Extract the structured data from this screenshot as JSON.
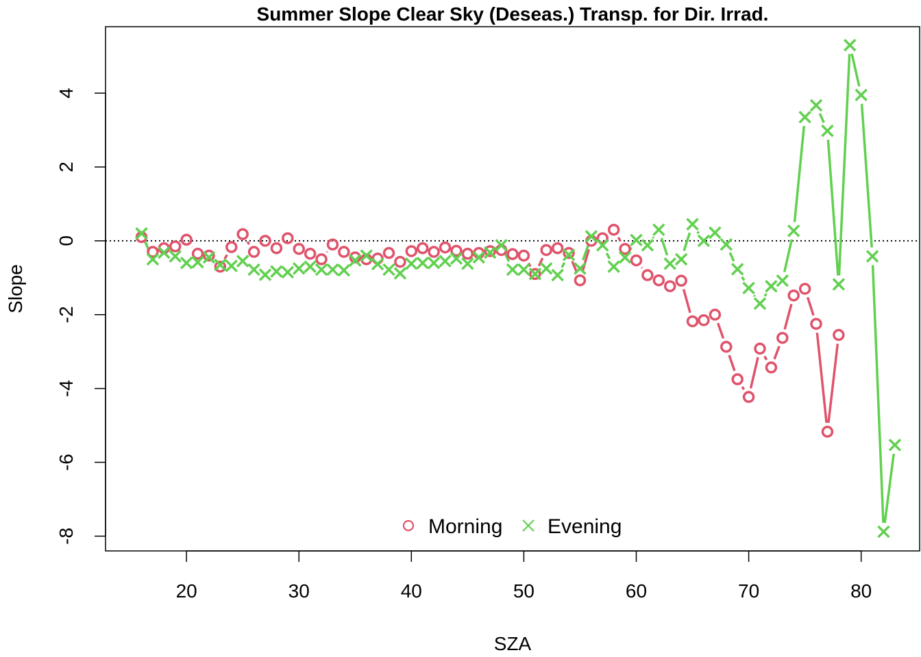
{
  "chart_data": {
    "type": "line",
    "title": "Summer Slope Clear Sky (Deseas.) Transp. for Dir. Irrad.",
    "xlabel": "SZA",
    "ylabel": "Slope",
    "xlim": [
      12.8,
      85.2
    ],
    "ylim": [
      -8.4,
      5.8
    ],
    "xticks": [
      20,
      30,
      40,
      50,
      60,
      70,
      80
    ],
    "yticks": [
      -8,
      -6,
      -4,
      -2,
      0,
      2,
      4
    ],
    "reference_line": {
      "y": 0,
      "style": "dotted"
    },
    "grid": false,
    "legend": {
      "position": "bottom-center",
      "entries": [
        "Morning",
        "Evening"
      ]
    },
    "series": [
      {
        "name": "Morning",
        "marker": "circle",
        "color": "#DF536B",
        "points": [
          [
            16,
            0.1
          ],
          [
            17,
            -0.3
          ],
          [
            18,
            -0.2
          ],
          [
            19,
            -0.15
          ],
          [
            20,
            0.03
          ],
          [
            21,
            -0.35
          ],
          [
            22,
            -0.4
          ],
          [
            23,
            -0.7
          ],
          [
            24,
            -0.17
          ],
          [
            25,
            0.18
          ],
          [
            26,
            -0.3
          ],
          [
            27,
            0.0
          ],
          [
            28,
            -0.2
          ],
          [
            29,
            0.07
          ],
          [
            30,
            -0.22
          ],
          [
            31,
            -0.35
          ],
          [
            32,
            -0.5
          ],
          [
            33,
            -0.1
          ],
          [
            34,
            -0.3
          ],
          [
            35,
            -0.45
          ],
          [
            36,
            -0.5
          ],
          [
            37,
            -0.48
          ],
          [
            38,
            -0.33
          ],
          [
            39,
            -0.57
          ],
          [
            40,
            -0.28
          ],
          [
            41,
            -0.2
          ],
          [
            42,
            -0.3
          ],
          [
            43,
            -0.18
          ],
          [
            44,
            -0.27
          ],
          [
            45,
            -0.35
          ],
          [
            46,
            -0.33
          ],
          [
            47,
            -0.28
          ],
          [
            48,
            -0.25
          ],
          [
            49,
            -0.36
          ],
          [
            50,
            -0.4
          ],
          [
            51,
            -0.9
          ],
          [
            52,
            -0.25
          ],
          [
            53,
            -0.2
          ],
          [
            54,
            -0.33
          ],
          [
            55,
            -1.07
          ],
          [
            56,
            0.0
          ],
          [
            57,
            0.07
          ],
          [
            58,
            0.3
          ],
          [
            59,
            -0.22
          ],
          [
            60,
            -0.53
          ],
          [
            61,
            -0.93
          ],
          [
            62,
            -1.07
          ],
          [
            63,
            -1.23
          ],
          [
            64,
            -1.08
          ],
          [
            65,
            -2.18
          ],
          [
            66,
            -2.15
          ],
          [
            67,
            -2.0
          ],
          [
            68,
            -2.87
          ],
          [
            69,
            -3.75
          ],
          [
            70,
            -4.23
          ],
          [
            71,
            -2.92
          ],
          [
            72,
            -3.43
          ],
          [
            73,
            -2.63
          ],
          [
            74,
            -1.48
          ],
          [
            75,
            -1.3
          ],
          [
            76,
            -2.25
          ],
          [
            77,
            -5.17
          ],
          [
            78,
            -2.55
          ]
        ]
      },
      {
        "name": "Evening",
        "marker": "cross",
        "color": "#61D04F",
        "points": [
          [
            16,
            0.2
          ],
          [
            17,
            -0.5
          ],
          [
            18,
            -0.32
          ],
          [
            19,
            -0.42
          ],
          [
            20,
            -0.6
          ],
          [
            21,
            -0.58
          ],
          [
            22,
            -0.45
          ],
          [
            23,
            -0.65
          ],
          [
            24,
            -0.68
          ],
          [
            25,
            -0.55
          ],
          [
            26,
            -0.78
          ],
          [
            27,
            -0.92
          ],
          [
            28,
            -0.83
          ],
          [
            29,
            -0.85
          ],
          [
            30,
            -0.75
          ],
          [
            31,
            -0.7
          ],
          [
            32,
            -0.78
          ],
          [
            33,
            -0.78
          ],
          [
            34,
            -0.8
          ],
          [
            35,
            -0.53
          ],
          [
            36,
            -0.4
          ],
          [
            37,
            -0.63
          ],
          [
            38,
            -0.78
          ],
          [
            39,
            -0.88
          ],
          [
            40,
            -0.62
          ],
          [
            41,
            -0.6
          ],
          [
            42,
            -0.6
          ],
          [
            43,
            -0.55
          ],
          [
            44,
            -0.48
          ],
          [
            45,
            -0.62
          ],
          [
            46,
            -0.45
          ],
          [
            47,
            -0.32
          ],
          [
            48,
            -0.12
          ],
          [
            49,
            -0.78
          ],
          [
            50,
            -0.78
          ],
          [
            51,
            -0.9
          ],
          [
            52,
            -0.75
          ],
          [
            53,
            -0.93
          ],
          [
            54,
            -0.38
          ],
          [
            55,
            -0.75
          ],
          [
            56,
            0.12
          ],
          [
            57,
            -0.12
          ],
          [
            58,
            -0.7
          ],
          [
            59,
            -0.45
          ],
          [
            60,
            0.02
          ],
          [
            61,
            -0.12
          ],
          [
            62,
            0.3
          ],
          [
            63,
            -0.62
          ],
          [
            64,
            -0.5
          ],
          [
            65,
            0.45
          ],
          [
            66,
            0.0
          ],
          [
            67,
            0.22
          ],
          [
            68,
            -0.1
          ],
          [
            69,
            -0.77
          ],
          [
            70,
            -1.28
          ],
          [
            71,
            -1.7
          ],
          [
            72,
            -1.23
          ],
          [
            73,
            -1.08
          ],
          [
            74,
            0.27
          ],
          [
            75,
            3.35
          ],
          [
            76,
            3.67
          ],
          [
            77,
            2.98
          ],
          [
            78,
            -1.18
          ],
          [
            79,
            5.3
          ],
          [
            80,
            3.95
          ],
          [
            81,
            -0.42
          ],
          [
            82,
            -7.88
          ],
          [
            83,
            -5.53
          ]
        ]
      }
    ]
  }
}
